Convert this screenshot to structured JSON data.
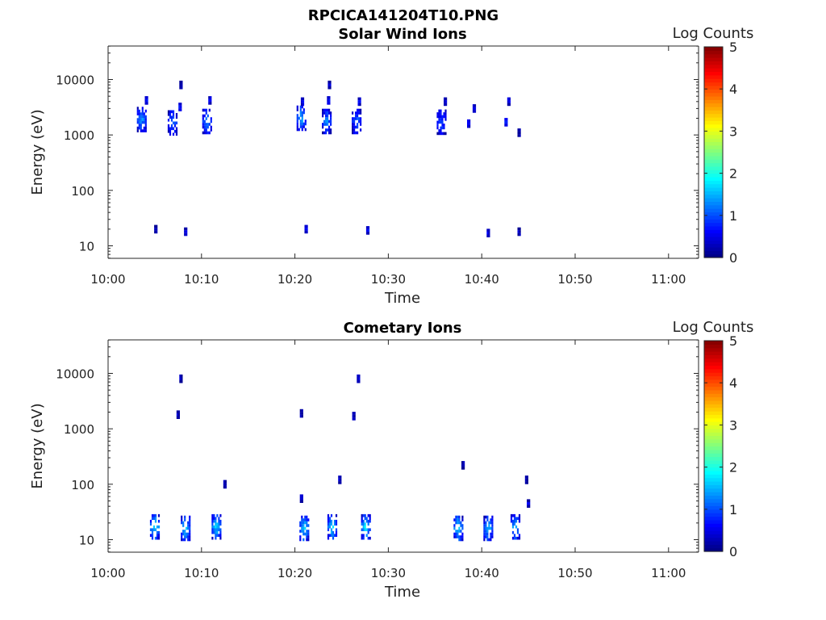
{
  "figure": {
    "title": "RPCICA141204T10.PNG"
  },
  "chart_data": [
    {
      "type": "heatmap",
      "title": "Solar Wind Ions",
      "xlabel": "Time",
      "ylabel": "Energy (eV)",
      "x_ticks": [
        "10:00",
        "10:10",
        "10:20",
        "10:30",
        "10:40",
        "10:50",
        "11:00"
      ],
      "xlim_minutes": [
        0,
        63.5
      ],
      "y_scale": "log",
      "y_ticks": [
        "10",
        "100",
        "1000",
        "10000"
      ],
      "ylim": [
        6,
        45000
      ],
      "colorbar": {
        "label": "Log Counts",
        "range": [
          0,
          5
        ],
        "ticks": [
          "0",
          "1",
          "2",
          "3",
          "4",
          "5"
        ]
      },
      "clusters": [
        {
          "t": 3.6,
          "e": 1900,
          "c": 1.4
        },
        {
          "t": 4.1,
          "e": 4200,
          "c": 0.8
        },
        {
          "t": 6.9,
          "e": 1650,
          "c": 1.2
        },
        {
          "t": 7.7,
          "e": 3200,
          "c": 0.9
        },
        {
          "t": 7.8,
          "e": 8000,
          "c": 0.4
        },
        {
          "t": 10.6,
          "e": 1750,
          "c": 1.3
        },
        {
          "t": 10.9,
          "e": 4200,
          "c": 0.8
        },
        {
          "t": 20.7,
          "e": 2000,
          "c": 1.5
        },
        {
          "t": 20.8,
          "e": 4000,
          "c": 0.8
        },
        {
          "t": 23.4,
          "e": 1750,
          "c": 1.3
        },
        {
          "t": 23.6,
          "e": 4200,
          "c": 0.8
        },
        {
          "t": 23.7,
          "e": 8000,
          "c": 0.4
        },
        {
          "t": 26.6,
          "e": 1750,
          "c": 1.2
        },
        {
          "t": 26.9,
          "e": 4000,
          "c": 0.8
        },
        {
          "t": 35.7,
          "e": 1700,
          "c": 1.0
        },
        {
          "t": 36.1,
          "e": 4000,
          "c": 0.5
        },
        {
          "t": 38.6,
          "e": 1600,
          "c": 0.9
        },
        {
          "t": 39.2,
          "e": 3000,
          "c": 0.5
        },
        {
          "t": 42.6,
          "e": 1700,
          "c": 0.9
        },
        {
          "t": 42.9,
          "e": 4000,
          "c": 0.8
        },
        {
          "t": 44.0,
          "e": 1100,
          "c": 0.3
        },
        {
          "t": 5.1,
          "e": 20,
          "c": 0.4
        },
        {
          "t": 8.3,
          "e": 18,
          "c": 0.7
        },
        {
          "t": 21.2,
          "e": 20,
          "c": 0.8
        },
        {
          "t": 27.8,
          "e": 19,
          "c": 0.8
        },
        {
          "t": 40.7,
          "e": 17,
          "c": 0.6
        },
        {
          "t": 44.0,
          "e": 18,
          "c": 0.4
        }
      ]
    },
    {
      "type": "heatmap",
      "title": "Cometary Ions",
      "xlabel": "Time",
      "ylabel": "Energy (eV)",
      "x_ticks": [
        "10:00",
        "10:10",
        "10:20",
        "10:30",
        "10:40",
        "10:50",
        "11:00"
      ],
      "xlim_minutes": [
        0,
        63.5
      ],
      "y_scale": "log",
      "y_ticks": [
        "10",
        "100",
        "1000",
        "10000"
      ],
      "ylim": [
        6,
        45000
      ],
      "colorbar": {
        "label": "Log Counts",
        "range": [
          0,
          5
        ],
        "ticks": [
          "0",
          "1",
          "2",
          "3",
          "4",
          "5"
        ]
      },
      "clusters": [
        {
          "t": 5.0,
          "e": 17,
          "c": 1.9
        },
        {
          "t": 8.3,
          "e": 16,
          "c": 1.8
        },
        {
          "t": 11.6,
          "e": 17,
          "c": 1.8
        },
        {
          "t": 21.0,
          "e": 16,
          "c": 1.8
        },
        {
          "t": 24.0,
          "e": 17,
          "c": 1.8
        },
        {
          "t": 27.6,
          "e": 17,
          "c": 1.9
        },
        {
          "t": 37.5,
          "e": 16,
          "c": 1.8
        },
        {
          "t": 40.7,
          "e": 16,
          "c": 1.6
        },
        {
          "t": 43.6,
          "e": 17,
          "c": 1.6
        },
        {
          "t": 45.0,
          "e": 45,
          "c": 0.6
        },
        {
          "t": 20.7,
          "e": 55,
          "c": 0.6
        },
        {
          "t": 24.8,
          "e": 120,
          "c": 0.4
        },
        {
          "t": 7.5,
          "e": 1800,
          "c": 0.4
        },
        {
          "t": 7.8,
          "e": 8000,
          "c": 0.4
        },
        {
          "t": 20.7,
          "e": 1900,
          "c": 0.4
        },
        {
          "t": 26.3,
          "e": 1700,
          "c": 0.4
        },
        {
          "t": 26.8,
          "e": 8000,
          "c": 0.4
        },
        {
          "t": 38.0,
          "e": 220,
          "c": 0.4
        },
        {
          "t": 12.5,
          "e": 100,
          "c": 0.3
        },
        {
          "t": 44.8,
          "e": 120,
          "c": 0.3
        }
      ]
    }
  ]
}
